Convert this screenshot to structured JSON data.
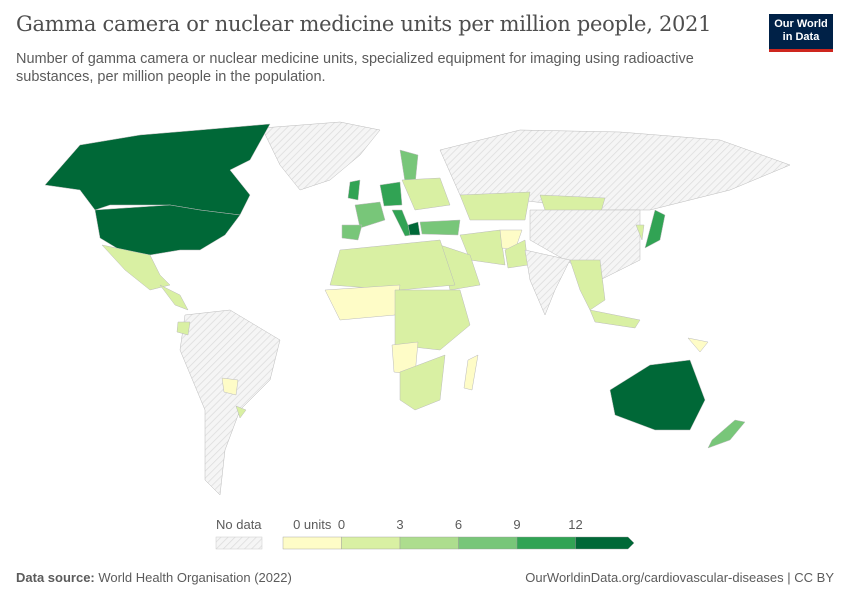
{
  "header": {
    "title": "Gamma camera or nuclear medicine units per million people, 2021",
    "subtitle": "Number of gamma camera or nuclear medicine units, specialized equipment for imaging using radioactive substances, per million people in the population.",
    "logo": "Our World in Data"
  },
  "legend": {
    "no_data_label": "No data",
    "bins": [
      {
        "label": "0 units",
        "color": "#fefcc7"
      },
      {
        "label": "0",
        "color": "#d9f0a3"
      },
      {
        "label": "3",
        "color": "#addd8e"
      },
      {
        "label": "6",
        "color": "#78c679"
      },
      {
        "label": "9",
        "color": "#31a354"
      },
      {
        "label": "12",
        "color": "#006837"
      }
    ]
  },
  "footer": {
    "source_label": "Data source:",
    "source": "World Health Organisation (2022)",
    "url": "OurWorldinData.org/cardiovascular-diseases | CC BY"
  },
  "colors": {
    "no_data": "#ededed",
    "border": "#ffffff"
  }
}
